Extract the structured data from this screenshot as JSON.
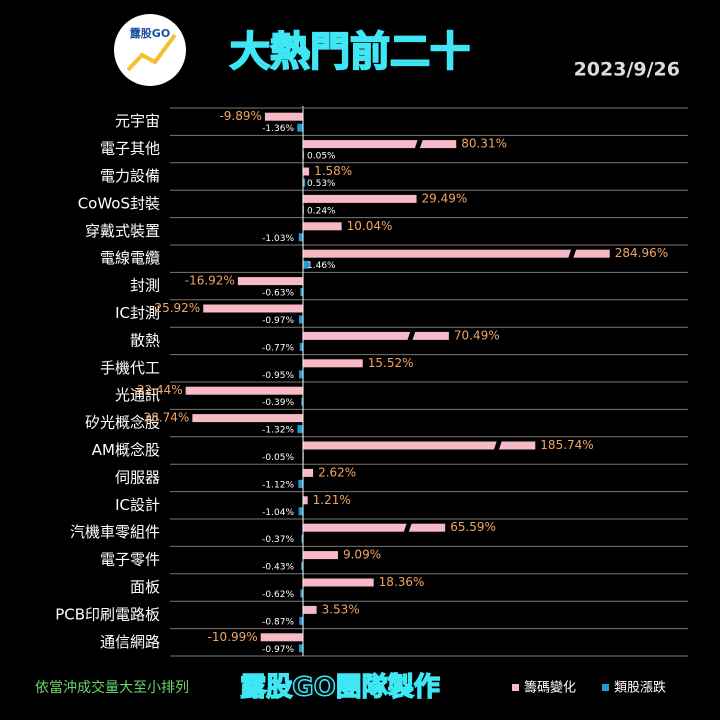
{
  "chart_data": {
    "type": "bar",
    "title": "大熱門前二十",
    "date": "2023/9/26",
    "logo_text": "露股GO",
    "note": "依當沖成交量大至小排列",
    "credit": "露股GO團隊製作",
    "categories": [
      "元宇宙",
      "電子其他",
      "電力設備",
      "CoWoS封裝",
      "穿戴式裝置",
      "電線電纜",
      "封測",
      "IC封測",
      "散熱",
      "手機代工",
      "光通訊",
      "矽光概念股",
      "AM概念股",
      "伺服器",
      "IC設計",
      "汽機車零組件",
      "電子零件",
      "面板",
      "PCB印刷電路板",
      "通信網路"
    ],
    "series": [
      {
        "name": "籌碼變化",
        "color": "#f7b9c6",
        "values": [
          -9.89,
          80.31,
          1.58,
          29.49,
          10.04,
          284.96,
          -16.92,
          -25.92,
          70.49,
          15.52,
          -32.44,
          -28.74,
          185.74,
          2.62,
          1.21,
          65.59,
          9.09,
          18.36,
          3.53,
          -10.99
        ],
        "value_labels": [
          "-9.89%",
          "80.31%",
          "1.58%",
          "29.49%",
          "10.04%",
          "284.96%",
          "-16.92%",
          "-25.92%",
          "70.49%",
          "15.52%",
          "-32.44%",
          "-28.74%",
          "185.74%",
          "2.62%",
          "1.21%",
          "65.59%",
          "9.09%",
          "18.36%",
          "3.53%",
          "-10.99%"
        ]
      },
      {
        "name": "類股漲跌",
        "color": "#1e9bd7",
        "values": [
          -1.36,
          0.05,
          0.53,
          0.24,
          -1.03,
          1.46,
          -0.63,
          -0.97,
          -0.77,
          -0.95,
          -0.39,
          -1.32,
          -0.05,
          -1.12,
          -1.04,
          -0.37,
          -0.43,
          -0.62,
          -0.87,
          -0.97
        ],
        "value_labels": [
          "-1.36%",
          "0.05%",
          "0.53%",
          "0.24%",
          "-1.03%",
          "1.46%",
          "-0.63%",
          "-0.97%",
          "-0.77%",
          "-0.95%",
          "-0.39%",
          "-1.32%",
          "-0.05%",
          "-1.12%",
          "-1.04%",
          "-0.37%",
          "-0.43%",
          "-0.62%",
          "-0.87%",
          "-0.97%"
        ]
      }
    ],
    "legend": "bottom-right"
  }
}
